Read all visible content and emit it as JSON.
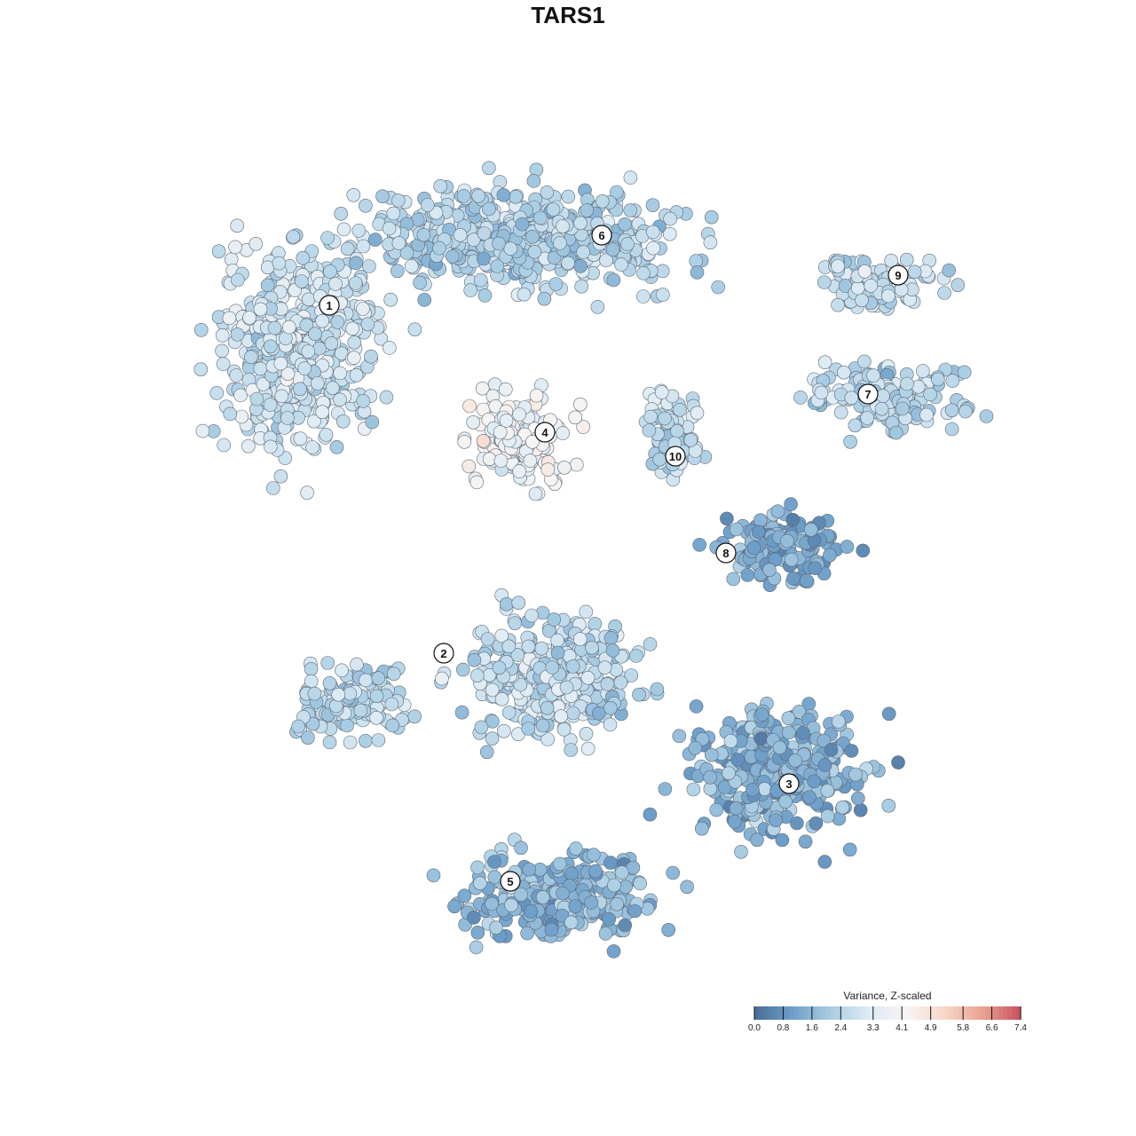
{
  "chart_data": {
    "type": "scatter",
    "title": "TARS1",
    "xlabel": "",
    "ylabel": "",
    "grid": false,
    "legend": {
      "title": "Variance, Z-scaled",
      "placement": "bottom-right",
      "ticks": [
        "0.0",
        "0.8",
        "1.6",
        "2.4",
        "3.3",
        "4.1",
        "4.9",
        "5.8",
        "6.6",
        "7.4"
      ],
      "range": [
        0.0,
        7.4
      ],
      "colors": [
        "#4a6d96",
        "#6d9ec9",
        "#a9cde3",
        "#ddebf4",
        "#f7f4f3",
        "#f7d7c8",
        "#e9a291",
        "#c7515f"
      ]
    },
    "clusters": [
      {
        "label": "1",
        "x": 0.0,
        "y": 0.0,
        "rx": 0.0,
        "ry": 0.0,
        "mean": 2.9
      },
      {
        "label": "2",
        "x": 0.0,
        "y": 0.0,
        "rx": 0.0,
        "ry": 0.0,
        "mean": 2.5
      },
      {
        "label": "3",
        "x": 0.0,
        "y": 0.0,
        "rx": 0.0,
        "ry": 0.0,
        "mean": 1.5
      },
      {
        "label": "4",
        "x": 0.0,
        "y": 0.0,
        "rx": 0.0,
        "ry": 0.0,
        "mean": 3.9
      },
      {
        "label": "5",
        "x": 0.0,
        "y": 0.0,
        "rx": 0.0,
        "ry": 0.0,
        "mean": 1.7
      },
      {
        "label": "6",
        "x": 0.0,
        "y": 0.0,
        "rx": 0.0,
        "ry": 0.0,
        "mean": 2.4
      },
      {
        "label": "7",
        "x": 0.0,
        "y": 0.0,
        "rx": 0.0,
        "ry": 0.0,
        "mean": 2.4
      },
      {
        "label": "8",
        "x": 0.0,
        "y": 0.0,
        "rx": 0.0,
        "ry": 0.0,
        "mean": 1.3
      },
      {
        "label": "9",
        "x": 0.0,
        "y": 0.0,
        "rx": 0.0,
        "ry": 0.0,
        "mean": 2.7
      },
      {
        "label": "10",
        "x": 0.0,
        "y": 0.0,
        "rx": 0.0,
        "ry": 0.0,
        "mean": 2.6
      }
    ]
  }
}
